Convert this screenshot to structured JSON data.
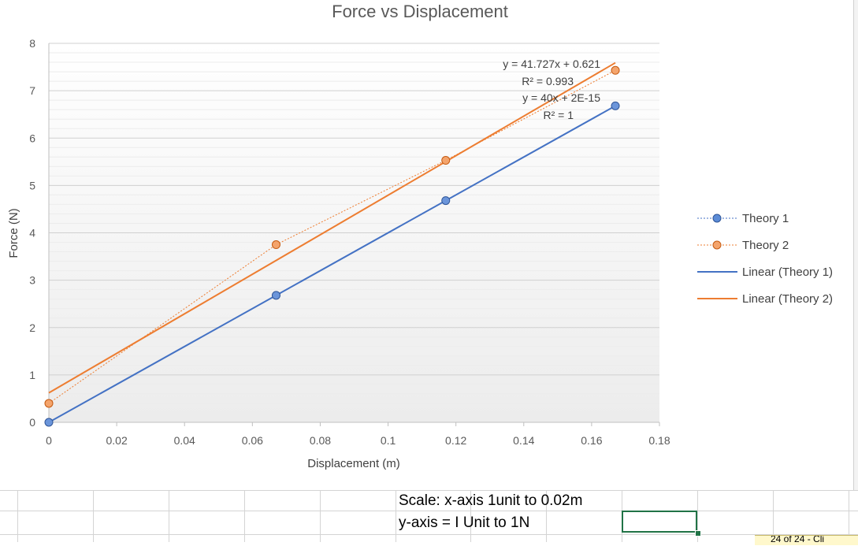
{
  "chart_data": {
    "type": "scatter",
    "title": "Force vs Displacement",
    "xlabel": "Displacement (m)",
    "ylabel": "Force (N)",
    "xlim": [
      0,
      0.18
    ],
    "ylim": [
      0,
      8
    ],
    "x_ticks": [
      "0",
      "0.02",
      "0.04",
      "0.06",
      "0.08",
      "0.1",
      "0.12",
      "0.14",
      "0.16",
      "0.18"
    ],
    "y_ticks": [
      "0",
      "1",
      "2",
      "3",
      "4",
      "5",
      "6",
      "7",
      "8"
    ],
    "grid": true,
    "legend_position": "right",
    "series": [
      {
        "name": "Theory 1",
        "color": "#4472C4",
        "x": [
          0,
          0.067,
          0.117,
          0.167
        ],
        "y": [
          0,
          2.68,
          4.68,
          6.68
        ]
      },
      {
        "name": "Theory 2",
        "color": "#ED7D31",
        "x": [
          0,
          0.067,
          0.117,
          0.167
        ],
        "y": [
          0.4,
          3.75,
          5.53,
          7.43
        ]
      }
    ],
    "trendlines": [
      {
        "name": "Linear (Theory 1)",
        "color": "#4472C4",
        "slope": 40,
        "intercept": 0,
        "x_range": [
          0,
          0.167
        ]
      },
      {
        "name": "Linear (Theory 2)",
        "color": "#ED7D31",
        "slope": 41.727,
        "intercept": 0.621,
        "x_range": [
          0,
          0.167
        ]
      }
    ],
    "annotations": [
      "y = 41.727x + 0.621",
      "R² = 0.993",
      "y = 40x + 2E-15",
      "R² = 1"
    ]
  },
  "sheet": {
    "scale_line1": "Scale: x-axis 1unit to 0.02m",
    "scale_line2": "y-axis = I Unit to 1N",
    "comment_tag": "24 of 24 - Cli"
  }
}
